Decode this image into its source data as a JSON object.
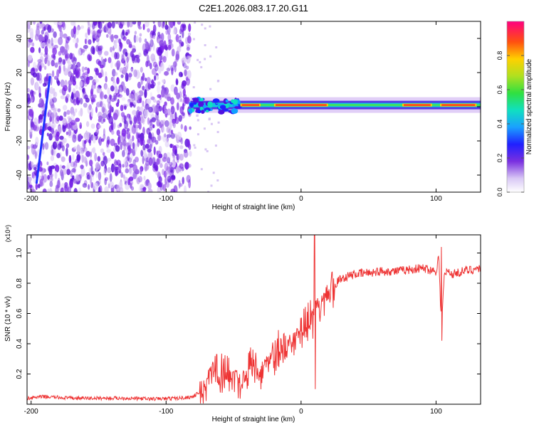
{
  "title": "C2E1.2026.083.17.20.G11",
  "chart_data": [
    {
      "type": "heatmap",
      "title": "C2E1.2026.083.17.20.G11",
      "xlabel": "Height of straight line (km)",
      "ylabel": "Frequency (Hz)",
      "xlim": [
        -203,
        133
      ],
      "ylim": [
        -50,
        50
      ],
      "xticks": [
        -200,
        -100,
        0,
        100
      ],
      "yticks": [
        -40,
        -20,
        0,
        20,
        40
      ],
      "noise_region_x": [
        -203,
        -82
      ],
      "signal_band": {
        "x_start": -82,
        "x_end": 133,
        "center_frequency_hz": 1,
        "peak_segments_x": [
          [
            -45,
            -30
          ],
          [
            -20,
            20
          ],
          [
            75,
            97
          ],
          [
            103,
            130
          ]
        ]
      },
      "streak": {
        "x": [
          -196,
          -186
        ],
        "y": [
          -45,
          18
        ]
      },
      "colorbar": {
        "label": "Normalized spectral amplitude",
        "range": [
          0,
          1
        ],
        "ticks": [
          0.0,
          0.2,
          0.4,
          0.6,
          0.8
        ]
      }
    },
    {
      "type": "line",
      "xlabel": "Height of straight line (km)",
      "ylabel": "SNR (10 * v/v)",
      "y_multiplier": "(x10⁴)",
      "xlim": [
        -203,
        133
      ],
      "ylim": [
        0.0,
        1.12
      ],
      "xticks": [
        -200,
        -100,
        0,
        100
      ],
      "yticks": [
        0.2,
        0.4,
        0.6,
        0.8,
        1.0
      ],
      "series": [
        {
          "name": "SNR",
          "color": "#ee3333",
          "x": [
            -203,
            -190,
            -170,
            -150,
            -130,
            -110,
            -90,
            -80,
            -72,
            -68,
            -64,
            -60,
            -56,
            -52,
            -48,
            -44,
            -40,
            -36,
            -32,
            -28,
            -24,
            -20,
            -16,
            -12,
            -8,
            -4,
            0,
            4,
            8,
            10,
            12,
            16,
            20,
            24,
            28,
            32,
            36,
            40,
            50,
            60,
            70,
            80,
            90,
            95,
            100,
            102,
            104,
            106,
            108,
            112,
            120,
            133
          ],
          "y": [
            0.04,
            0.05,
            0.04,
            0.04,
            0.04,
            0.035,
            0.04,
            0.05,
            0.1,
            0.22,
            0.26,
            0.2,
            0.18,
            0.22,
            0.2,
            0.14,
            0.24,
            0.26,
            0.22,
            0.27,
            0.3,
            0.33,
            0.36,
            0.38,
            0.42,
            0.46,
            0.5,
            0.55,
            0.57,
            0.6,
            0.66,
            0.7,
            0.74,
            0.78,
            0.82,
            0.84,
            0.85,
            0.86,
            0.87,
            0.88,
            0.88,
            0.89,
            0.9,
            0.89,
            0.88,
            0.98,
            0.5,
            0.84,
            0.88,
            0.86,
            0.88,
            0.9
          ]
        }
      ],
      "spikes": [
        {
          "x": 10,
          "y_top": 1.12,
          "y_bottom": 0.1
        },
        {
          "x": 104,
          "y_top": 1.04,
          "y_bottom": 0.42
        }
      ]
    }
  ]
}
